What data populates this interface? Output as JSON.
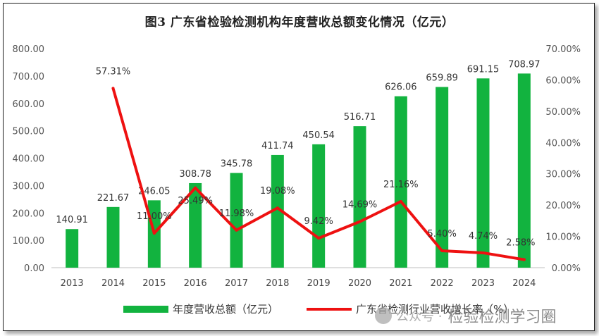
{
  "title": "图3 广东省检验检测机构年度营收总额变化情况（亿元）",
  "colors": {
    "bar": "#12b33f",
    "line": "#ee1111"
  },
  "chart_data": {
    "type": "bar",
    "categories": [
      "2013",
      "2014",
      "2015",
      "2016",
      "2017",
      "2018",
      "2019",
      "2020",
      "2021",
      "2022",
      "2023",
      "2024"
    ],
    "series": [
      {
        "name": "年度营收总额（亿元）",
        "type": "bar",
        "axis": "left",
        "values": [
          140.91,
          221.67,
          246.05,
          308.78,
          345.78,
          411.74,
          450.54,
          516.71,
          626.06,
          659.89,
          691.15,
          708.97
        ],
        "labels": [
          "140.91",
          "221.67",
          "246.05",
          "308.78",
          "345.78",
          "411.74",
          "450.54",
          "516.71",
          "626.06",
          "659.89",
          "691.15",
          "708.97"
        ]
      },
      {
        "name": "广东省检测行业营收增长率（%）",
        "type": "line",
        "axis": "right",
        "values": [
          null,
          57.31,
          11.0,
          25.49,
          11.98,
          19.08,
          9.42,
          14.69,
          21.16,
          5.4,
          4.74,
          2.58
        ],
        "labels": [
          "",
          "57.31%",
          "11.00%",
          "25.49%",
          "11.98%",
          "19.08%",
          "9.42%",
          "14.69%",
          "21.16%",
          "5.40%",
          "4.74%",
          "2.58%"
        ]
      }
    ],
    "y_left": {
      "min": 0,
      "max": 800,
      "ticks": [
        "0.00",
        "100.00",
        "200.00",
        "300.00",
        "400.00",
        "500.00",
        "600.00",
        "700.00",
        "800.00"
      ]
    },
    "y_right": {
      "min": 0,
      "max": 70,
      "ticks": [
        "0.00%",
        "10.00%",
        "20.00%",
        "30.00%",
        "40.00%",
        "50.00%",
        "60.00%",
        "70.00%"
      ]
    },
    "grid": false,
    "legend_position": "bottom"
  },
  "watermark": {
    "prefix": "公众号 ·",
    "name": "检验检测学习圈"
  }
}
